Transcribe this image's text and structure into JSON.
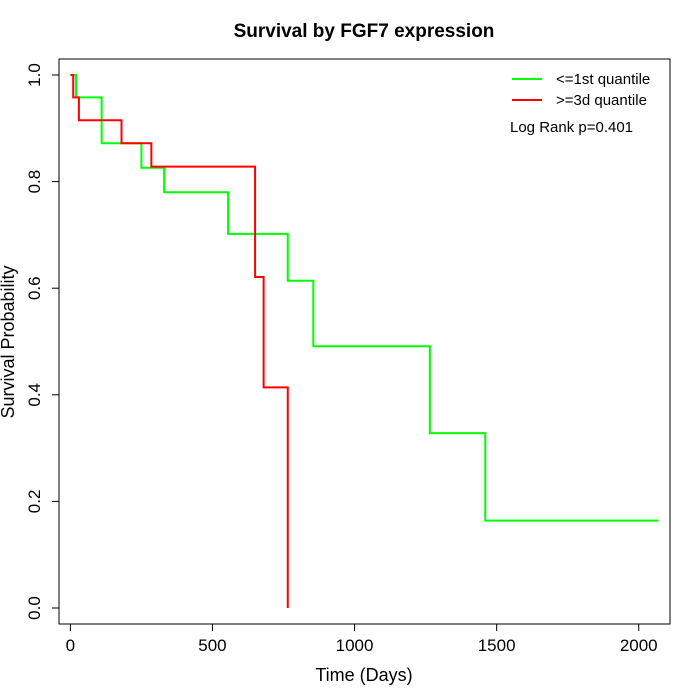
{
  "chart_data": {
    "type": "line",
    "subtype": "step",
    "title": "Survival by FGF7 expression",
    "xlabel": "Time (Days)",
    "ylabel": "Survival Probability",
    "xlim": [
      -40,
      2110
    ],
    "ylim": [
      -0.03,
      1.03
    ],
    "xticks": [
      0,
      500,
      1000,
      1500,
      2000
    ],
    "yticks": [
      0.0,
      0.2,
      0.4,
      0.6,
      0.8,
      1.0
    ],
    "xtick_labels": [
      "0",
      "500",
      "1000",
      "1500",
      "2000"
    ],
    "ytick_labels": [
      "0.0",
      "0.2",
      "0.4",
      "0.6",
      "0.8",
      "1.0"
    ],
    "grid": false,
    "legend_position": "top-right",
    "annotation": "Log Rank p=0.401",
    "series": [
      {
        "name": "<=1st quantile",
        "color": "#00ff00",
        "x": [
          0,
          20,
          110,
          250,
          330,
          555,
          765,
          855,
          1265,
          1460,
          2070
        ],
        "y": [
          1.0,
          0.958,
          0.872,
          0.826,
          0.78,
          0.702,
          0.614,
          0.491,
          0.328,
          0.164,
          0.164
        ]
      },
      {
        "name": ">=3d quantile",
        "color": "#ff0000",
        "x": [
          0,
          10,
          30,
          180,
          285,
          650,
          680,
          765
        ],
        "y": [
          1.0,
          0.958,
          0.915,
          0.872,
          0.828,
          0.621,
          0.414,
          0.0
        ]
      }
    ]
  }
}
